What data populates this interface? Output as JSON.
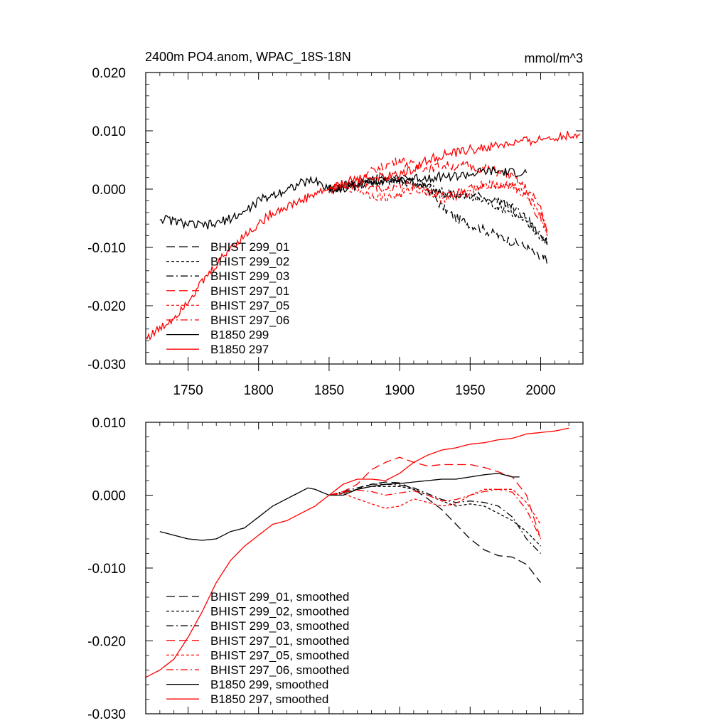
{
  "chart_data": [
    {
      "type": "line",
      "title": "2400m PO4.anom, WPAC_18S-18N",
      "units": "mmol/m^3",
      "xlim": [
        1720,
        2030
      ],
      "ylim": [
        -0.03,
        0.02
      ],
      "x_ticks": [
        1750,
        1800,
        1850,
        1900,
        1950,
        2000
      ],
      "x_tick_labels": [
        "1750",
        "1800",
        "1850",
        "1900",
        "1950",
        "2000"
      ],
      "y_ticks": [
        0.02,
        0.01,
        0.0,
        -0.01,
        -0.02,
        -0.03
      ],
      "y_tick_labels": [
        "0.020",
        "0.010",
        "0.000",
        "-0.010",
        "-0.020",
        "-0.030"
      ],
      "legend_position": "lower-left",
      "series": [
        {
          "name": "BHIST 299_01",
          "color": "#000000",
          "dash": "long-dash",
          "x": [
            1850,
            1860,
            1870,
            1880,
            1890,
            1900,
            1910,
            1920,
            1930,
            1940,
            1950,
            1960,
            1970,
            1980,
            1990,
            2000,
            2005
          ],
          "y": [
            0.0,
            0.0005,
            0.001,
            0.0015,
            0.002,
            0.002,
            0.001,
            0.0,
            -0.003,
            -0.005,
            -0.006,
            -0.007,
            -0.008,
            -0.009,
            -0.01,
            -0.012,
            -0.012
          ]
        },
        {
          "name": "BHIST 299_02",
          "color": "#000000",
          "dash": "short-dash",
          "x": [
            1850,
            1860,
            1870,
            1880,
            1890,
            1900,
            1910,
            1920,
            1930,
            1940,
            1950,
            1960,
            1970,
            1980,
            1990,
            2000,
            2005
          ],
          "y": [
            0.0,
            0.0005,
            0.001,
            0.0012,
            0.0015,
            0.0015,
            0.001,
            0.0,
            -0.0005,
            -0.001,
            -0.0015,
            -0.002,
            -0.003,
            -0.004,
            -0.006,
            -0.008,
            -0.009
          ]
        },
        {
          "name": "BHIST 299_03",
          "color": "#000000",
          "dash": "dash-dot",
          "x": [
            1850,
            1860,
            1870,
            1880,
            1890,
            1900,
            1910,
            1920,
            1930,
            1940,
            1950,
            1960,
            1970,
            1980,
            1990,
            2000,
            2005
          ],
          "y": [
            0.0,
            0.0005,
            0.001,
            0.0015,
            0.0015,
            0.0015,
            0.0012,
            0.0005,
            -0.0005,
            -0.001,
            -0.001,
            -0.0015,
            -0.002,
            -0.003,
            -0.005,
            -0.008,
            -0.009
          ]
        },
        {
          "name": "BHIST 297_01",
          "color": "#ff0000",
          "dash": "long-dash",
          "x": [
            1850,
            1860,
            1870,
            1880,
            1890,
            1900,
            1910,
            1920,
            1930,
            1940,
            1950,
            1960,
            1970,
            1980,
            1990,
            2000,
            2005
          ],
          "y": [
            0.0,
            0.0005,
            0.001,
            0.003,
            0.004,
            0.005,
            0.004,
            0.0035,
            0.004,
            0.004,
            0.004,
            0.0035,
            0.003,
            0.002,
            0.0,
            -0.003,
            -0.008
          ]
        },
        {
          "name": "BHIST 297_05",
          "color": "#ff0000",
          "dash": "short-dash",
          "x": [
            1850,
            1860,
            1870,
            1880,
            1890,
            1900,
            1910,
            1920,
            1930,
            1940,
            1950,
            1960,
            1970,
            1980,
            1990,
            2000,
            2005
          ],
          "y": [
            0.0,
            0.0005,
            0.0,
            -0.001,
            -0.0015,
            -0.001,
            0.0,
            -0.0005,
            -0.0015,
            -0.0015,
            -0.0005,
            0.001,
            0.0005,
            0.0008,
            -0.001,
            -0.004,
            -0.007
          ]
        },
        {
          "name": "BHIST 297_06",
          "color": "#ff0000",
          "dash": "dash-dot",
          "x": [
            1850,
            1860,
            1870,
            1880,
            1890,
            1900,
            1910,
            1920,
            1930,
            1940,
            1950,
            1960,
            1970,
            1980,
            1990,
            2000,
            2005
          ],
          "y": [
            0.0,
            0.0005,
            0.0008,
            0.0005,
            0.0,
            0.0005,
            0.0008,
            0.0,
            -0.0008,
            -0.0005,
            0.0,
            0.0005,
            0.0008,
            0.0005,
            -0.0015,
            -0.005,
            -0.008
          ]
        },
        {
          "name": "B1850 299",
          "color": "#000000",
          "dash": "solid",
          "x": [
            1730,
            1740,
            1750,
            1760,
            1770,
            1780,
            1790,
            1800,
            1810,
            1820,
            1830,
            1840,
            1850,
            1860,
            1870,
            1880,
            1890,
            1900,
            1910,
            1920,
            1930,
            1940,
            1950,
            1960,
            1970,
            1980,
            1990
          ],
          "y": [
            -0.005,
            -0.0055,
            -0.006,
            -0.0063,
            -0.006,
            -0.005,
            -0.004,
            -0.002,
            -0.001,
            0.0,
            0.001,
            0.0015,
            0.0,
            0.0,
            0.0008,
            0.0012,
            0.0016,
            0.0016,
            0.0018,
            0.002,
            0.0022,
            0.0022,
            0.0025,
            0.003,
            0.003,
            0.0028,
            0.0028
          ]
        },
        {
          "name": "B1850 297",
          "color": "#ff0000",
          "dash": "solid",
          "x": [
            1720,
            1730,
            1740,
            1750,
            1760,
            1770,
            1780,
            1790,
            1800,
            1810,
            1820,
            1830,
            1840,
            1850,
            1860,
            1870,
            1880,
            1890,
            1900,
            1910,
            1920,
            1930,
            1940,
            1950,
            1960,
            1970,
            1980,
            1990,
            2000,
            2010,
            2020,
            2028
          ],
          "y": [
            -0.0255,
            -0.024,
            -0.022,
            -0.019,
            -0.016,
            -0.013,
            -0.01,
            -0.008,
            -0.006,
            -0.004,
            -0.003,
            -0.002,
            -0.0008,
            0.0,
            0.001,
            0.0018,
            0.002,
            0.002,
            0.0025,
            0.0035,
            0.005,
            0.0058,
            0.0062,
            0.0068,
            0.007,
            0.0075,
            0.0078,
            0.0082,
            0.0085,
            0.009,
            0.0092,
            0.0095
          ]
        }
      ]
    },
    {
      "type": "line",
      "xlim": [
        1720,
        2030
      ],
      "ylim": [
        -0.03,
        0.01
      ],
      "x_ticks": [
        1750,
        1800,
        1850,
        1900,
        1950,
        2000
      ],
      "y_ticks": [
        0.01,
        0.0,
        -0.01,
        -0.02,
        -0.03
      ],
      "y_tick_labels": [
        "0.010",
        "0.000",
        "-0.010",
        "-0.020",
        "-0.030"
      ],
      "legend_position": "lower-left",
      "series": [
        {
          "name": "BHIST 299_01, smoothed",
          "color": "#000000",
          "dash": "long-dash",
          "x": [
            1850,
            1860,
            1870,
            1880,
            1890,
            1900,
            1910,
            1920,
            1930,
            1940,
            1950,
            1960,
            1970,
            1980,
            1990,
            2000
          ],
          "y": [
            0.0,
            0.0003,
            0.0008,
            0.0015,
            0.0018,
            0.0017,
            0.0008,
            -0.0005,
            -0.002,
            -0.004,
            -0.006,
            -0.0075,
            -0.0083,
            -0.0085,
            -0.0095,
            -0.012
          ]
        },
        {
          "name": "BHIST 299_02, smoothed",
          "color": "#000000",
          "dash": "short-dash",
          "x": [
            1850,
            1860,
            1870,
            1880,
            1890,
            1900,
            1910,
            1920,
            1930,
            1940,
            1950,
            1960,
            1970,
            1980,
            1990,
            2000
          ],
          "y": [
            0.0,
            0.0003,
            0.0008,
            0.0012,
            0.0012,
            0.0012,
            0.0008,
            0.0,
            -0.0008,
            -0.0015,
            -0.0012,
            -0.0015,
            -0.0025,
            -0.0035,
            -0.005,
            -0.007
          ]
        },
        {
          "name": "BHIST 299_03, smoothed",
          "color": "#000000",
          "dash": "dash-dot",
          "x": [
            1850,
            1860,
            1870,
            1880,
            1890,
            1900,
            1910,
            1920,
            1930,
            1940,
            1950,
            1960,
            1970,
            1980,
            1990,
            2000
          ],
          "y": [
            0.0,
            0.0005,
            0.001,
            0.0015,
            0.0015,
            0.0014,
            0.001,
            0.0002,
            -0.0006,
            -0.001,
            -0.0008,
            -0.001,
            -0.0015,
            -0.003,
            -0.006,
            -0.008
          ]
        },
        {
          "name": "BHIST 297_01, smoothed",
          "color": "#ff0000",
          "dash": "long-dash",
          "x": [
            1850,
            1860,
            1870,
            1880,
            1890,
            1900,
            1910,
            1920,
            1930,
            1940,
            1950,
            1960,
            1970,
            1980,
            1990,
            2000
          ],
          "y": [
            0.0,
            0.0005,
            0.0015,
            0.0035,
            0.0045,
            0.0052,
            0.0045,
            0.004,
            0.0042,
            0.0042,
            0.0042,
            0.0038,
            0.0032,
            0.0025,
            0.0,
            -0.006
          ]
        },
        {
          "name": "BHIST 297_05, smoothed",
          "color": "#ff0000",
          "dash": "short-dash",
          "x": [
            1850,
            1860,
            1870,
            1880,
            1890,
            1900,
            1910,
            1920,
            1930,
            1940,
            1950,
            1960,
            1970,
            1980,
            1990,
            2000
          ],
          "y": [
            0.0,
            0.0002,
            -0.0005,
            -0.0012,
            -0.0018,
            -0.0015,
            -0.0005,
            -0.001,
            -0.0015,
            -0.0012,
            0.0,
            0.0008,
            0.0008,
            0.0008,
            -0.001,
            -0.004
          ]
        },
        {
          "name": "BHIST 297_06, smoothed",
          "color": "#ff0000",
          "dash": "dash-dot",
          "x": [
            1850,
            1860,
            1870,
            1880,
            1890,
            1900,
            1910,
            1920,
            1930,
            1940,
            1950,
            1960,
            1970,
            1980,
            1990,
            2000
          ],
          "y": [
            0.0,
            0.0004,
            0.0007,
            0.0005,
            0.0,
            0.0003,
            0.0006,
            0.0,
            -0.0008,
            -0.0006,
            0.0,
            0.0005,
            0.0008,
            0.0004,
            -0.002,
            -0.006
          ]
        },
        {
          "name": "B1850 299, smoothed",
          "color": "#000000",
          "dash": "solid",
          "x": [
            1730,
            1740,
            1750,
            1760,
            1770,
            1780,
            1790,
            1800,
            1810,
            1820,
            1830,
            1835,
            1840,
            1850,
            1860,
            1870,
            1880,
            1890,
            1900,
            1910,
            1920,
            1930,
            1940,
            1950,
            1960,
            1970,
            1980,
            1985
          ],
          "y": [
            -0.005,
            -0.0055,
            -0.006,
            -0.0062,
            -0.006,
            -0.005,
            -0.0045,
            -0.003,
            -0.0015,
            -0.0005,
            0.0005,
            0.001,
            0.0008,
            0.0,
            0.0,
            0.0008,
            0.0012,
            0.0015,
            0.0016,
            0.0018,
            0.002,
            0.0022,
            0.0022,
            0.0025,
            0.0028,
            0.003,
            0.0025,
            0.0025
          ]
        },
        {
          "name": "B1850 297, smoothed",
          "color": "#ff0000",
          "dash": "solid",
          "x": [
            1720,
            1730,
            1740,
            1750,
            1760,
            1770,
            1780,
            1790,
            1800,
            1810,
            1820,
            1830,
            1840,
            1850,
            1860,
            1870,
            1880,
            1890,
            1900,
            1910,
            1920,
            1930,
            1940,
            1950,
            1960,
            1970,
            1980,
            1990,
            2000,
            2010,
            2020
          ],
          "y": [
            -0.025,
            -0.024,
            -0.0225,
            -0.0195,
            -0.016,
            -0.012,
            -0.009,
            -0.007,
            -0.0055,
            -0.004,
            -0.0035,
            -0.0025,
            -0.0015,
            0.0,
            0.0015,
            0.0022,
            0.0022,
            0.002,
            0.003,
            0.0045,
            0.0055,
            0.0062,
            0.0065,
            0.007,
            0.0072,
            0.0076,
            0.0078,
            0.0084,
            0.0086,
            0.0088,
            0.0092
          ]
        }
      ]
    }
  ]
}
